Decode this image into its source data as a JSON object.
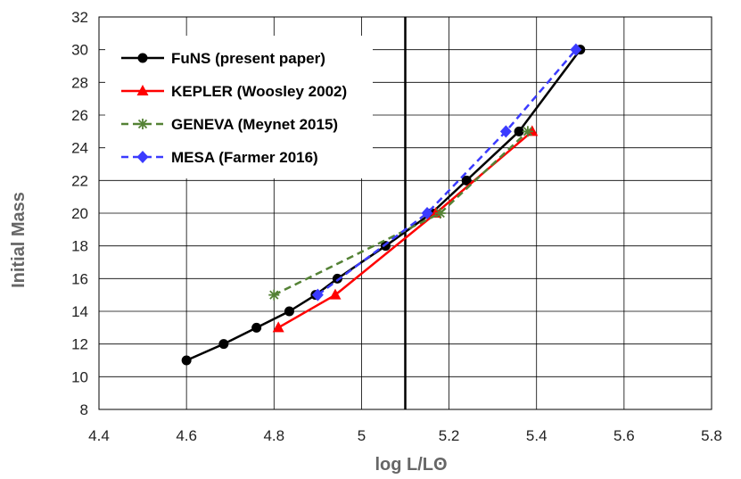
{
  "chart_data": {
    "type": "line",
    "title": "",
    "xlabel": "log L/Lʘ",
    "ylabel": "Initial Mass",
    "xlim": [
      4.4,
      5.8
    ],
    "ylim": [
      8,
      32
    ],
    "xticks": [
      4.4,
      4.6,
      4.8,
      5.0,
      5.2,
      5.4,
      5.6,
      5.8
    ],
    "xtick_labels": [
      "4.4",
      "4.6",
      "4.8",
      "5",
      "5.2",
      "5.4",
      "5.6",
      "5.8"
    ],
    "yticks": [
      8,
      10,
      12,
      14,
      16,
      18,
      20,
      22,
      24,
      26,
      28,
      30,
      32
    ],
    "ytick_labels": [
      "8",
      "10",
      "12",
      "14",
      "16",
      "18",
      "20",
      "22",
      "24",
      "26",
      "28",
      "30",
      "32"
    ],
    "grid": true,
    "legend_position": "top-left",
    "vertical_line_x": 5.1,
    "series": [
      {
        "name": "FuNS (present paper)",
        "color": "#000000",
        "dash": "solid",
        "marker": "circle",
        "x": [
          4.6,
          4.685,
          4.76,
          4.835,
          4.895,
          4.945,
          5.055,
          5.16,
          5.24,
          5.36,
          5.5
        ],
        "y": [
          11,
          12,
          13,
          14,
          15,
          16,
          18,
          20,
          22,
          25,
          30
        ]
      },
      {
        "name": "KEPLER (Woosley 2002)",
        "color": "#ff0000",
        "dash": "solid",
        "marker": "triangle",
        "x": [
          4.81,
          4.94,
          5.17,
          5.39
        ],
        "y": [
          13,
          15,
          20,
          25
        ]
      },
      {
        "name": "GENEVA (Meynet 2015)",
        "color": "#548235",
        "dash": "dash",
        "marker": "asterisk",
        "x": [
          4.8,
          5.18,
          5.38
        ],
        "y": [
          15,
          20,
          25
        ]
      },
      {
        "name": "MESA (Farmer 2016)",
        "color": "#3b3bff",
        "dash": "dash",
        "marker": "diamond",
        "x": [
          4.9,
          5.15,
          5.33,
          5.49
        ],
        "y": [
          15,
          20,
          25,
          30
        ]
      }
    ]
  }
}
